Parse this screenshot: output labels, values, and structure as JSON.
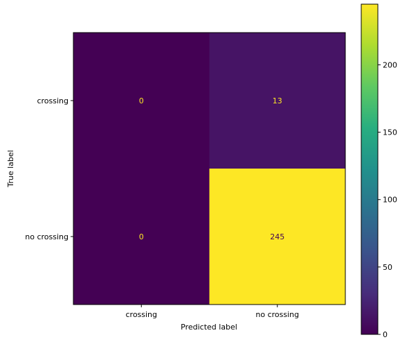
{
  "chart_data": {
    "type": "heatmap",
    "title": "",
    "xlabel": "Predicted label",
    "ylabel": "True label",
    "x_categories": [
      "crossing",
      "no crossing"
    ],
    "y_categories": [
      "crossing",
      "no crossing"
    ],
    "values": [
      [
        0,
        13
      ],
      [
        0,
        245
      ]
    ],
    "cell_labels": [
      [
        "0",
        "13"
      ],
      [
        "0",
        "245"
      ]
    ],
    "colormap": "viridis",
    "colorbar": {
      "range": [
        0,
        245
      ],
      "ticks": [
        0,
        50,
        100,
        150,
        200
      ],
      "tick_labels": [
        "0",
        "50",
        "100",
        "150",
        "200"
      ]
    },
    "grid": false,
    "colors": {
      "low_text": "#fde725",
      "high_text": "#440154"
    }
  }
}
